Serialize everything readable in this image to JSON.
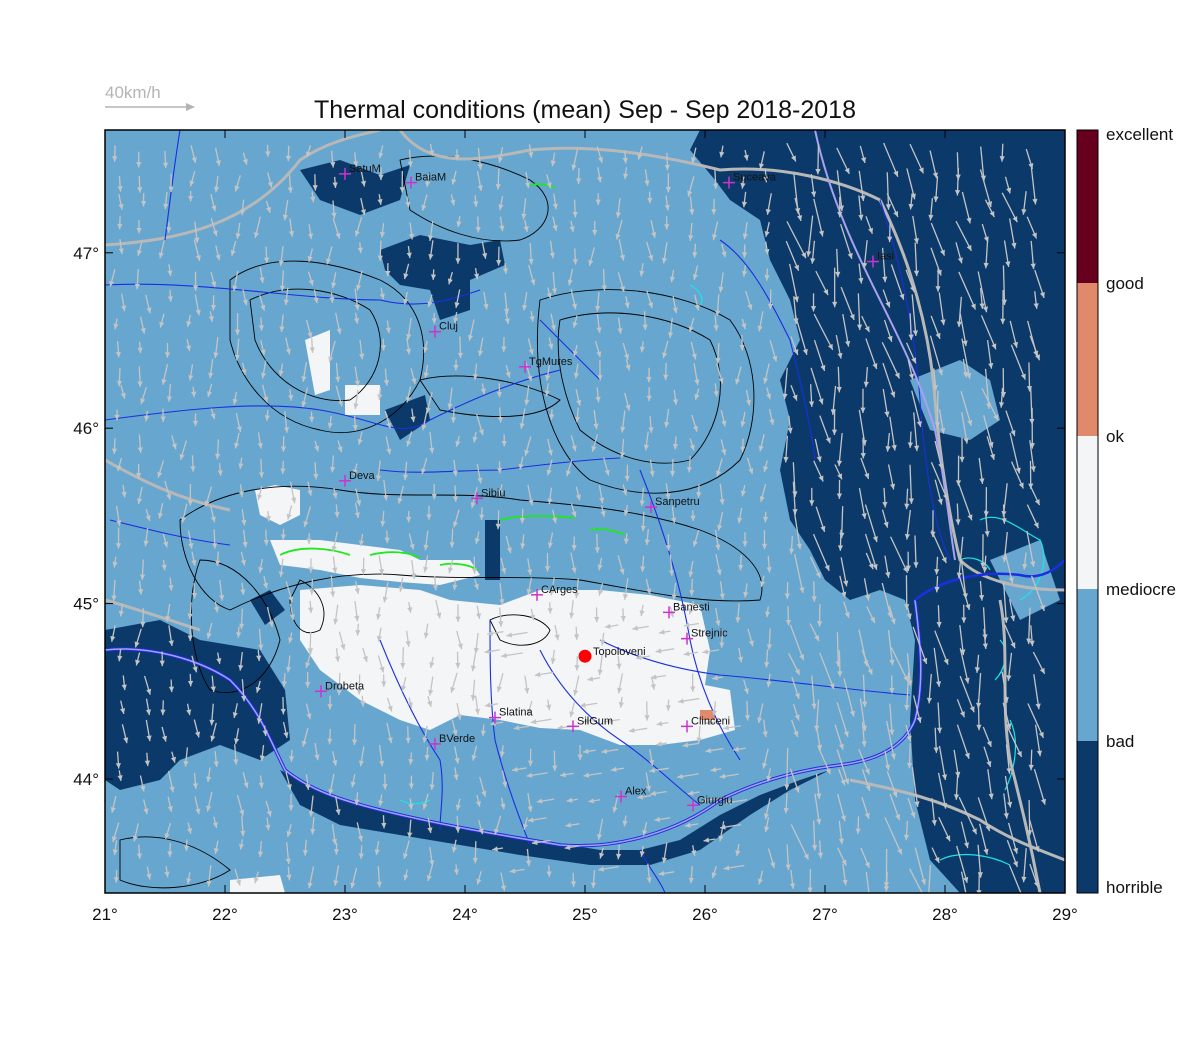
{
  "title": "Thermal conditions (mean) Sep - Sep  2018-2018",
  "wind_scale": {
    "label": "40km/h",
    "speed_kmh": 40
  },
  "axes": {
    "lon_ticks": [
      "21°",
      "22°",
      "23°",
      "24°",
      "25°",
      "26°",
      "27°",
      "28°",
      "29°"
    ],
    "lat_ticks": [
      "44°",
      "45°",
      "46°",
      "47°"
    ]
  },
  "colorbar": {
    "labels": [
      "excellent",
      "good",
      "ok",
      "mediocre",
      "bad",
      "horrible"
    ],
    "colors": [
      "#67001f",
      "#e08a6b",
      "#f4f5f7",
      "#67a7cf",
      "#0b3a6a"
    ]
  },
  "map_colors": {
    "land": "#67a7cf",
    "horrible": "#0b3a6a",
    "mediocre": "#f4f5f7",
    "ok": "#e08a6b",
    "rivers": "#1a2fe0",
    "danube": "#a9a0f0",
    "borders": "#b8b8b8",
    "contours": "#000000",
    "wind_arrows": "#c4c4c4",
    "green_contours": "#1ee81e",
    "cyan_contours": "#18e6e6",
    "city_marker": "#cc33cc",
    "highlight_marker": "#ff0000"
  },
  "cities": [
    {
      "name": "SatuM",
      "lon": 23.0,
      "lat": 47.45
    },
    {
      "name": "BaiaM",
      "lon": 23.55,
      "lat": 47.4
    },
    {
      "name": "Suceava",
      "lon": 26.2,
      "lat": 47.4
    },
    {
      "name": "Iasi",
      "lon": 27.4,
      "lat": 46.95
    },
    {
      "name": "Cluj",
      "lon": 23.75,
      "lat": 46.55
    },
    {
      "name": "TgMures",
      "lon": 24.5,
      "lat": 46.35
    },
    {
      "name": "Deva",
      "lon": 23.0,
      "lat": 45.7
    },
    {
      "name": "Sibiu",
      "lon": 24.1,
      "lat": 45.6
    },
    {
      "name": "Sanpetru",
      "lon": 25.55,
      "lat": 45.55
    },
    {
      "name": "CArges",
      "lon": 24.6,
      "lat": 45.05
    },
    {
      "name": "Banesti",
      "lon": 25.7,
      "lat": 44.95
    },
    {
      "name": "Strejnic",
      "lon": 25.85,
      "lat": 44.8
    },
    {
      "name": "Drobeta",
      "lon": 22.8,
      "lat": 44.5
    },
    {
      "name": "Slatina",
      "lon": 24.25,
      "lat": 44.35
    },
    {
      "name": "SilGum",
      "lon": 24.9,
      "lat": 44.3
    },
    {
      "name": "Clinceni",
      "lon": 25.85,
      "lat": 44.3
    },
    {
      "name": "BVerde",
      "lon": 23.75,
      "lat": 44.2
    },
    {
      "name": "Alex",
      "lon": 25.3,
      "lat": 43.9
    },
    {
      "name": "Giurgiu",
      "lon": 25.9,
      "lat": 43.85
    }
  ],
  "highlight": {
    "name": "Topoloveni",
    "lon": 25.0,
    "lat": 44.7
  }
}
